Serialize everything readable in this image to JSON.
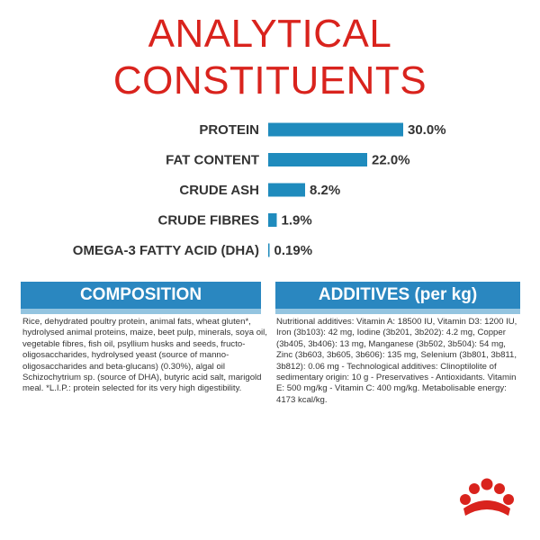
{
  "chart_data": {
    "type": "bar",
    "orientation": "horizontal",
    "title": "ANALYTICAL CONSTITUENTS",
    "categories": [
      "PROTEIN",
      "FAT CONTENT",
      "CRUDE ASH",
      "CRUDE FIBRES",
      "OMEGA-3 FATTY ACID (DHA)"
    ],
    "values": [
      30.0,
      22.0,
      8.2,
      1.9,
      0.19
    ],
    "value_labels": [
      "30.0%",
      "22.0%",
      "8.2%",
      "1.9%",
      "0.19%"
    ],
    "color": "#1f8bbd"
  },
  "composition": {
    "heading": "COMPOSITION",
    "text": "Rice, dehydrated poultry protein, animal fats, wheat gluten*, hydrolysed animal proteins, maize, beet pulp, minerals, soya oil, vegetable fibres, fish oil, psyllium husks and seeds, fructo-oligosaccharides, hydrolysed yeast (source of manno-oligosaccharides and beta-glucans) (0.30%), algal oil Schizochytrium sp. (source of DHA), butyric acid salt, marigold meal. *L.I.P.: protein selected for its very high digestibility."
  },
  "additives": {
    "heading": "ADDITIVES (per kg)",
    "text": "Nutritional additives: Vitamin A: 18500 IU, Vitamin D3: 1200 IU, Iron (3b103): 42 mg, Iodine (3b201, 3b202): 4.2 mg, Copper (3b405, 3b406): 13 mg, Manganese (3b502, 3b504): 54 mg, Zinc (3b603, 3b605, 3b606): 135 mg, Selenium (3b801, 3b811, 3b812): 0.06 mg - Technological additives: Clinoptilolite of sedimentary origin: 10 g - Preservatives - Antioxidants. Vitamin E: 500 mg/kg - Vitamin C: 400 mg/kg. Metabolisable energy: 4173 kcal/kg."
  }
}
